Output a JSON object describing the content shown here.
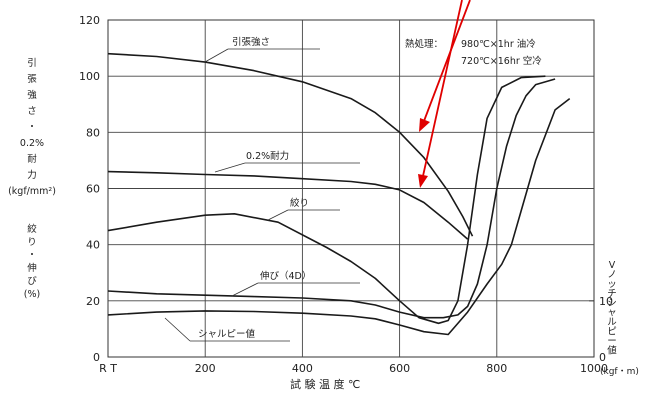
{
  "chart_data": {
    "type": "line",
    "xlabel": "試 験 温 度 ℃",
    "x_ticks": [
      "R T",
      "200",
      "400",
      "600",
      "800",
      "1000"
    ],
    "x_tick_values": [
      0,
      200,
      400,
      600,
      800,
      1000
    ],
    "xlim": [
      0,
      1000
    ],
    "y_left": {
      "label_top_lines": [
        "引",
        "張",
        "強",
        "さ",
        "・",
        "0.2%",
        "耐",
        "力",
        "(kgf/mm²)"
      ],
      "label_bottom_lines": [
        "絞",
        "り",
        "・",
        "伸",
        "び",
        "(%)"
      ],
      "ticks": [
        0,
        20,
        40,
        60,
        80,
        100,
        120
      ],
      "ylim": [
        0,
        120
      ]
    },
    "y_right": {
      "label_lines": [
        "V",
        "ノ",
        "ッ",
        "チ",
        "シ",
        "ャ",
        "ル",
        "ピ",
        "ー",
        "値"
      ],
      "unit": "(kgf・m)",
      "ticks": [
        0,
        10
      ],
      "ylim": [
        0,
        60
      ]
    },
    "annotation": {
      "heading": "熱処理：",
      "line1": "980℃×1hr 油冷",
      "line2": "720℃×16hr 空冷"
    },
    "series": [
      {
        "name": "引張強さ",
        "axis": "left",
        "points": [
          [
            0,
            108
          ],
          [
            100,
            107
          ],
          [
            200,
            105
          ],
          [
            300,
            102
          ],
          [
            400,
            98
          ],
          [
            500,
            92
          ],
          [
            550,
            87
          ],
          [
            600,
            80
          ],
          [
            650,
            71
          ],
          [
            700,
            59
          ],
          [
            730,
            50
          ],
          [
            750,
            43
          ]
        ]
      },
      {
        "name": "0.2%耐力",
        "axis": "left",
        "points": [
          [
            0,
            66
          ],
          [
            100,
            65.6
          ],
          [
            200,
            65
          ],
          [
            300,
            64.5
          ],
          [
            400,
            63.5
          ],
          [
            500,
            62.5
          ],
          [
            550,
            61.5
          ],
          [
            600,
            59.5
          ],
          [
            650,
            55
          ],
          [
            700,
            48
          ],
          [
            740,
            42
          ]
        ]
      },
      {
        "name": "絞り",
        "axis": "left",
        "points": [
          [
            0,
            45
          ],
          [
            100,
            48
          ],
          [
            200,
            50.5
          ],
          [
            260,
            51
          ],
          [
            350,
            48
          ],
          [
            450,
            39
          ],
          [
            500,
            34
          ],
          [
            550,
            28
          ],
          [
            600,
            20
          ],
          [
            640,
            14
          ],
          [
            680,
            12
          ],
          [
            700,
            13
          ],
          [
            720,
            20
          ],
          [
            740,
            40
          ],
          [
            760,
            65
          ],
          [
            780,
            85
          ],
          [
            810,
            96
          ],
          [
            850,
            99.5
          ],
          [
            900,
            100
          ]
        ]
      },
      {
        "name": "伸び(4D)",
        "axis": "left",
        "points": [
          [
            0,
            23.5
          ],
          [
            100,
            22.5
          ],
          [
            200,
            22
          ],
          [
            300,
            21.5
          ],
          [
            400,
            21
          ],
          [
            500,
            20
          ],
          [
            550,
            18.5
          ],
          [
            600,
            16
          ],
          [
            650,
            14
          ],
          [
            690,
            14
          ],
          [
            720,
            15
          ],
          [
            740,
            18
          ],
          [
            760,
            26
          ],
          [
            780,
            40
          ],
          [
            800,
            60
          ],
          [
            820,
            75
          ],
          [
            840,
            86
          ],
          [
            860,
            93
          ],
          [
            880,
            97
          ],
          [
            920,
            99
          ]
        ]
      },
      {
        "name": "シャルピー値",
        "axis": "right",
        "points": [
          [
            0,
            7.5
          ],
          [
            100,
            8
          ],
          [
            200,
            8.2
          ],
          [
            300,
            8.1
          ],
          [
            400,
            7.8
          ],
          [
            500,
            7.3
          ],
          [
            550,
            6.8
          ],
          [
            600,
            5.7
          ],
          [
            650,
            4.5
          ],
          [
            700,
            4
          ],
          [
            740,
            8
          ],
          [
            780,
            13
          ],
          [
            810,
            16.5
          ],
          [
            830,
            20
          ],
          [
            850,
            26
          ],
          [
            880,
            35
          ],
          [
            920,
            44
          ],
          [
            950,
            46
          ]
        ]
      }
    ],
    "series_labels": [
      "引張強さ",
      "0.2%耐力",
      "絞り",
      "伸び（4D）",
      "シャルピー値"
    ],
    "grid": true
  }
}
